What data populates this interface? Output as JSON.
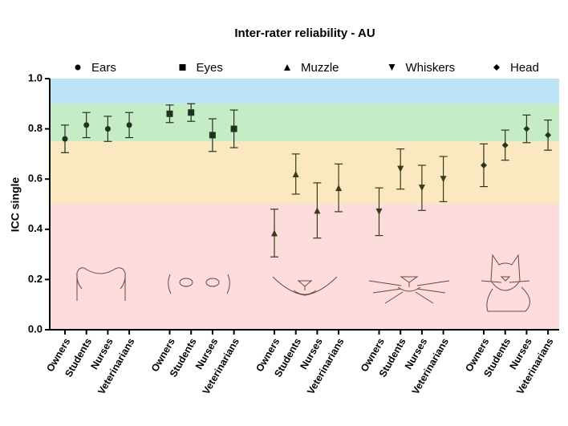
{
  "chart_data": {
    "type": "errorbar",
    "title": "Inter-rater reliability - AU",
    "y_label": "ICC single",
    "categories": [
      "Owners",
      "Students",
      "Nurses",
      "Veterinarians",
      "Owners",
      "Students",
      "Nurses",
      "Veterinarians",
      "Owners",
      "Students",
      "Nurses",
      "Veterinarians",
      "Owners",
      "Students",
      "Nurses",
      "Veterinarians",
      "Owners",
      "Students",
      "Nurses",
      "Veterinarians"
    ],
    "ylim": [
      0,
      1
    ],
    "yticks": [
      {
        "value": 0,
        "label": "0.0"
      },
      {
        "value": 0.2,
        "label": "0.2"
      },
      {
        "value": 0.4,
        "label": "0.4"
      },
      {
        "value": 0.6,
        "label": "0.6"
      },
      {
        "value": 0.8,
        "label": "0.8"
      },
      {
        "value": 1,
        "label": "1.0"
      }
    ],
    "bands": [
      {
        "from": 0,
        "to": 0.5,
        "color": "#fcdcdc"
      },
      {
        "from": 0.5,
        "to": 0.75,
        "color": "#fbe8c0"
      },
      {
        "from": 0.75,
        "to": 0.9,
        "color": "#c6ecc6"
      },
      {
        "from": 0.9,
        "to": 1,
        "color": "#bde3f7"
      }
    ],
    "series": [
      {
        "name": "Ears",
        "marker": "circle",
        "color": "#1f3320",
        "values": [
          0.76,
          0.815,
          0.8,
          0.815,
          null,
          null,
          null,
          null,
          null,
          null,
          null,
          null,
          null,
          null,
          null,
          null,
          null,
          null,
          null,
          null
        ],
        "errors": [
          0.055,
          0.05,
          0.05,
          0.05,
          null,
          null,
          null,
          null,
          null,
          null,
          null,
          null,
          null,
          null,
          null,
          null,
          null,
          null,
          null,
          null
        ]
      },
      {
        "name": "Eyes",
        "marker": "square",
        "color": "#1f3320",
        "values": [
          null,
          null,
          null,
          null,
          0.86,
          0.865,
          0.775,
          0.8,
          null,
          null,
          null,
          null,
          null,
          null,
          null,
          null,
          null,
          null,
          null,
          null
        ],
        "errors": [
          null,
          null,
          null,
          null,
          0.035,
          0.035,
          0.065,
          0.075,
          null,
          null,
          null,
          null,
          null,
          null,
          null,
          null,
          null,
          null,
          null,
          null
        ]
      },
      {
        "name": "Muzzle",
        "marker": "triangle-up",
        "color": "#3a3a14",
        "values": [
          null,
          null,
          null,
          null,
          null,
          null,
          null,
          null,
          0.385,
          0.62,
          0.475,
          0.565,
          null,
          null,
          null,
          null,
          null,
          null,
          null,
          null
        ],
        "errors": [
          null,
          null,
          null,
          null,
          null,
          null,
          null,
          null,
          0.095,
          0.08,
          0.11,
          0.095,
          null,
          null,
          null,
          null,
          null,
          null,
          null,
          null
        ]
      },
      {
        "name": "Whiskers",
        "marker": "triangle-down",
        "color": "#3a3a14",
        "values": [
          null,
          null,
          null,
          null,
          null,
          null,
          null,
          null,
          null,
          null,
          null,
          null,
          0.47,
          0.64,
          0.565,
          0.6,
          null,
          null,
          null,
          null
        ],
        "errors": [
          null,
          null,
          null,
          null,
          null,
          null,
          null,
          null,
          null,
          null,
          null,
          null,
          0.095,
          0.08,
          0.09,
          0.09,
          null,
          null,
          null,
          null
        ]
      },
      {
        "name": "Head",
        "marker": "diamond",
        "color": "#2a3320",
        "values": [
          null,
          null,
          null,
          null,
          null,
          null,
          null,
          null,
          null,
          null,
          null,
          null,
          null,
          null,
          null,
          null,
          0.655,
          0.735,
          0.8,
          0.775
        ],
        "errors": [
          null,
          null,
          null,
          null,
          null,
          null,
          null,
          null,
          null,
          null,
          null,
          null,
          null,
          null,
          null,
          null,
          0.085,
          0.06,
          0.055,
          0.06
        ]
      }
    ]
  }
}
